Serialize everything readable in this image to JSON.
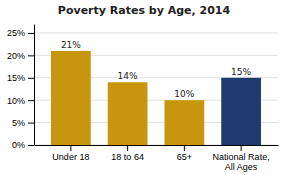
{
  "chart_data": {
    "type": "bar",
    "title": "Poverty Rates by Age, 2014",
    "categories": [
      "Under 18",
      "18 to 64",
      "65+",
      "National Rate,\nAll Ages"
    ],
    "values": [
      21,
      14,
      10,
      15
    ],
    "value_labels": [
      "21%",
      "14%",
      "10%",
      "15%"
    ],
    "data_labels": true,
    "colors": [
      "#C8960C",
      "#C8960C",
      "#C8960C",
      "#1F3A6E"
    ],
    "ylim": [
      0,
      27
    ],
    "yticks": [
      {
        "value": 0,
        "label": "0%"
      },
      {
        "value": 5,
        "label": "5%"
      },
      {
        "value": 10,
        "label": "10%"
      },
      {
        "value": 15,
        "label": "15%"
      },
      {
        "value": 20,
        "label": "20%"
      },
      {
        "value": 25,
        "label": "25%"
      }
    ],
    "grid": true
  }
}
